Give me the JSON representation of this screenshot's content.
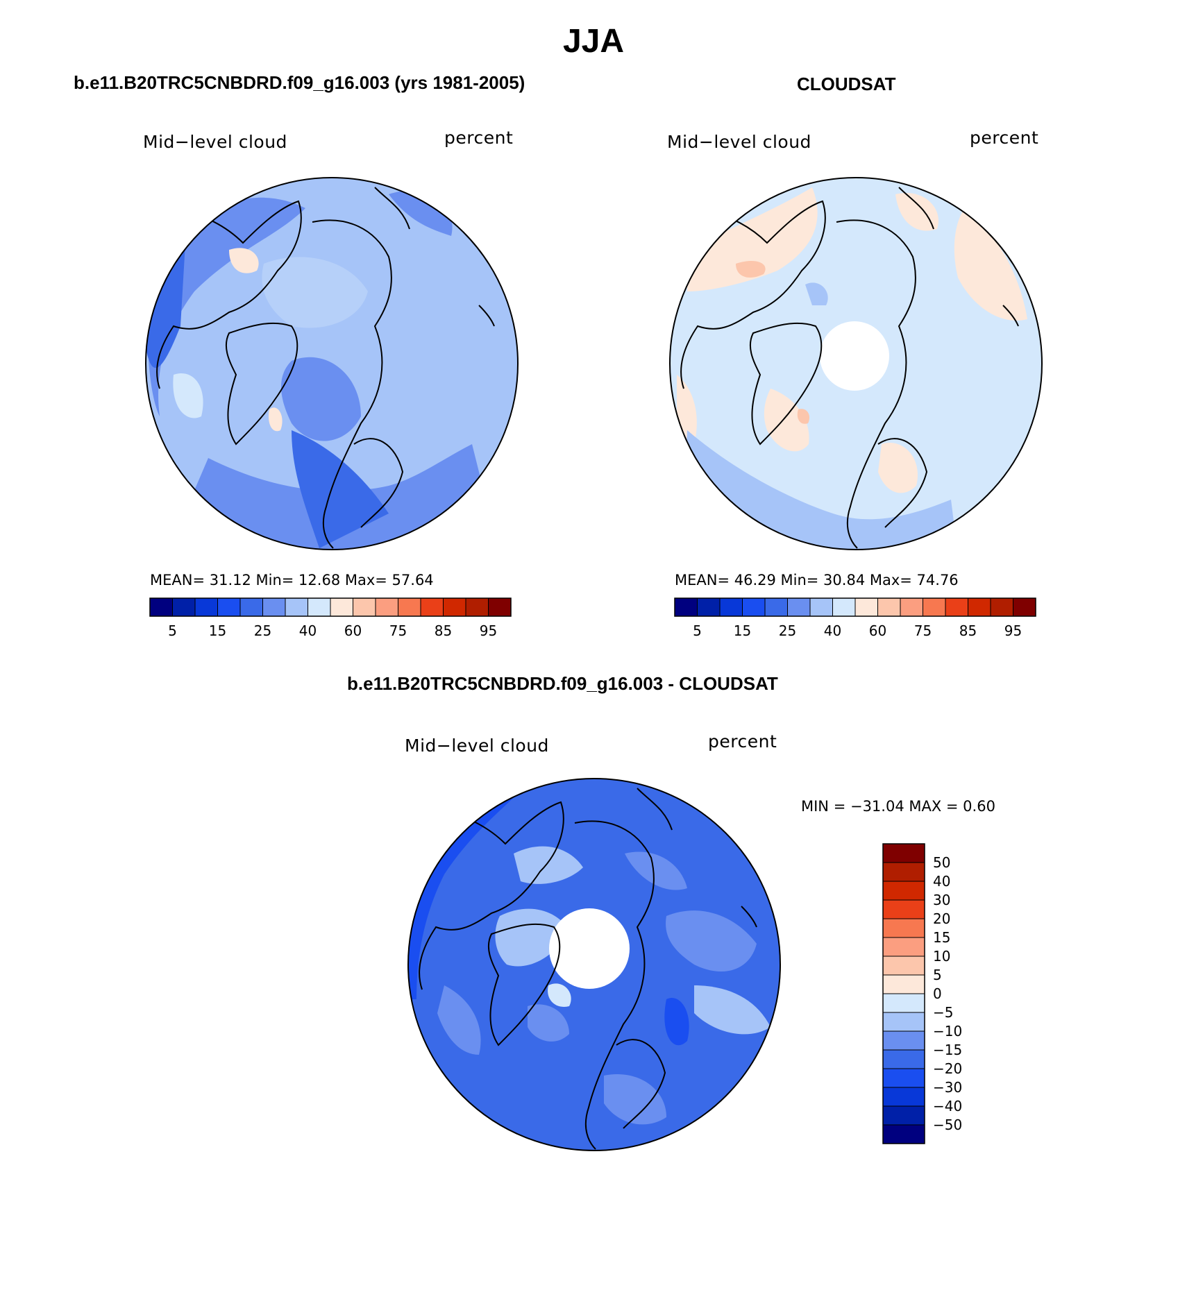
{
  "figure_title": "JJA",
  "panels": [
    {
      "id": "model",
      "header": "b.e11.B20TRC5CNBDRD.f09_g16.003 (yrs 1981-2005)",
      "variable_label": "Mid−level cloud",
      "units_label": "percent",
      "stats_text": "MEAN=   31.12   Min=   12.68   Max=   57.64",
      "colorbar_labels": [
        "5",
        "15",
        "25",
        "40",
        "60",
        "75",
        "85",
        "95"
      ]
    },
    {
      "id": "obs",
      "header": "CLOUDSAT",
      "variable_label": "Mid−level cloud",
      "units_label": "percent",
      "stats_text": "MEAN=   46.29   Min=   30.84   Max=   74.76",
      "colorbar_labels": [
        "5",
        "15",
        "25",
        "40",
        "60",
        "75",
        "85",
        "95"
      ]
    },
    {
      "id": "diff",
      "header": "b.e11.B20TRC5CNBDRD.f09_g16.003 - CLOUDSAT",
      "variable_label": "Mid−level cloud",
      "units_label": "percent",
      "stats_text": "MIN = −31.04 MAX =     0.60",
      "colorbar_labels": [
        "50",
        "40",
        "30",
        "20",
        "15",
        "10",
        "5",
        "0",
        "−5",
        "−10",
        "−15",
        "−20",
        "−30",
        "−40",
        "−50"
      ]
    }
  ],
  "chart_data": [
    {
      "type": "heatmap",
      "title": "Mid-level cloud",
      "units": "percent",
      "projection": "north polar stereographic",
      "mean": 31.12,
      "min": 12.68,
      "max": 57.64,
      "levels": [
        5,
        10,
        15,
        20,
        25,
        30,
        40,
        50,
        60,
        70,
        75,
        80,
        85,
        90,
        95
      ],
      "colors": [
        "#00007f",
        "#0020a8",
        "#0838d8",
        "#1a4ef0",
        "#3a6ae8",
        "#6a8ff0",
        "#a6c4f8",
        "#d4e8fc",
        "#fde8da",
        "#fcc6ac",
        "#fb9e80",
        "#f77850",
        "#ea4018",
        "#d02800",
        "#b01e00",
        "#7f0000"
      ]
    },
    {
      "type": "heatmap",
      "title": "Mid-level cloud",
      "units": "percent",
      "projection": "north polar stereographic",
      "mean": 46.29,
      "min": 30.84,
      "max": 74.76,
      "levels": [
        5,
        10,
        15,
        20,
        25,
        30,
        40,
        50,
        60,
        70,
        75,
        80,
        85,
        90,
        95
      ],
      "colors": [
        "#00007f",
        "#0020a8",
        "#0838d8",
        "#1a4ef0",
        "#3a6ae8",
        "#6a8ff0",
        "#a6c4f8",
        "#d4e8fc",
        "#fde8da",
        "#fcc6ac",
        "#fb9e80",
        "#f77850",
        "#ea4018",
        "#d02800",
        "#b01e00",
        "#7f0000"
      ]
    },
    {
      "type": "heatmap",
      "title": "Mid-level cloud",
      "units": "percent",
      "projection": "north polar stereographic",
      "min": -31.04,
      "max": 0.6,
      "levels": [
        -50,
        -40,
        -30,
        -20,
        -15,
        -10,
        -5,
        0,
        5,
        10,
        15,
        20,
        30,
        40,
        50
      ],
      "colors": [
        "#00007f",
        "#0020a8",
        "#0838d8",
        "#1a4ef0",
        "#3a6ae8",
        "#6a8ff0",
        "#a6c4f8",
        "#d4e8fc",
        "#fde8da",
        "#fcc6ac",
        "#fb9e80",
        "#f77850",
        "#ea4018",
        "#d02800",
        "#b01e00",
        "#7f0000"
      ]
    }
  ]
}
